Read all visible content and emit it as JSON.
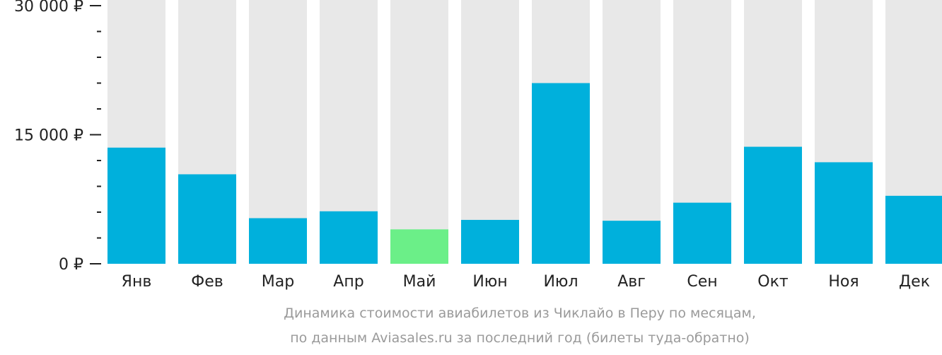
{
  "chart_data": {
    "type": "bar",
    "title": "Динамика стоимости авиабилетов из Чиклайо в Перу по месяцам,",
    "subtitle": "по данным Aviasales.ru за последний год (билеты туда-обратно)",
    "categories": [
      "Янв",
      "Фев",
      "Мар",
      "Апр",
      "Май",
      "Июн",
      "Июл",
      "Авг",
      "Сен",
      "Окт",
      "Ноя",
      "Дек"
    ],
    "values": [
      13500,
      10400,
      5300,
      6100,
      4000,
      5100,
      21000,
      5000,
      7100,
      13600,
      11800,
      7900
    ],
    "highlight_index": 4,
    "ylim": [
      0,
      30000
    ],
    "yticks": [
      {
        "value": 0,
        "label": "0 ₽"
      },
      {
        "value": 15000,
        "label": "15 000 ₽"
      },
      {
        "value": 30000,
        "label": "30 000 ₽"
      }
    ],
    "minor_tick_step": 3000,
    "colors": {
      "bar": "#00b0dc",
      "highlight": "#6bef88",
      "background": "#e8e8e8",
      "axis": "#222222"
    }
  }
}
